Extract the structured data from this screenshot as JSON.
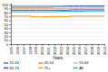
{
  "chart_data": {
    "type": "line",
    "xlabel": "Years",
    "x": [
      1995,
      1996,
      1997,
      1998,
      1999,
      2000,
      2001,
      2002,
      2003,
      2004,
      2005,
      2006,
      2007,
      2008,
      2009,
      2010
    ],
    "series": [
      {
        "name": "15-44",
        "color": "#4472c4",
        "values": [
          96,
          96,
          96,
          96,
          96,
          96,
          96,
          96,
          96,
          97,
          97,
          97,
          97,
          97,
          97,
          97
        ]
      },
      {
        "name": "45-54",
        "color": "#ed7d31",
        "values": [
          93,
          93,
          93,
          93,
          93,
          93,
          93,
          94,
          94,
          94,
          94,
          94,
          94,
          94,
          94,
          94
        ]
      },
      {
        "name": "55-64",
        "color": "#a9d18e",
        "values": [
          90,
          90,
          90,
          90,
          90,
          90,
          90,
          90,
          90,
          90,
          90,
          90,
          91,
          91,
          91,
          91
        ]
      },
      {
        "name": "65-74",
        "color": "#7030a0",
        "values": [
          86,
          86,
          86,
          86,
          86,
          86,
          86,
          86,
          86,
          86,
          87,
          87,
          87,
          87,
          87,
          87
        ]
      },
      {
        "name": "75+",
        "color": "#ff8c00",
        "values": [
          71,
          71,
          71,
          71,
          69,
          69,
          70,
          70,
          70,
          70,
          71,
          71,
          71,
          71,
          71,
          71
        ]
      },
      {
        "name": "All",
        "color": "#00b0f0",
        "values": [
          82,
          82,
          82,
          82,
          82,
          82,
          82,
          82,
          83,
          83,
          83,
          83,
          84,
          84,
          84,
          84
        ]
      }
    ],
    "xlim": [
      1995,
      2010
    ],
    "xticks": [
      1995,
      1996,
      1997,
      1998,
      1999,
      2000,
      2001,
      2002,
      2003,
      2004,
      2005,
      2006,
      2007,
      2008,
      2009,
      2010
    ],
    "ylim": [
      0,
      105
    ],
    "yticks": [
      0,
      10,
      20,
      30,
      40,
      50,
      60,
      70,
      80,
      90,
      100
    ],
    "grid": true,
    "legend": "bottom"
  }
}
